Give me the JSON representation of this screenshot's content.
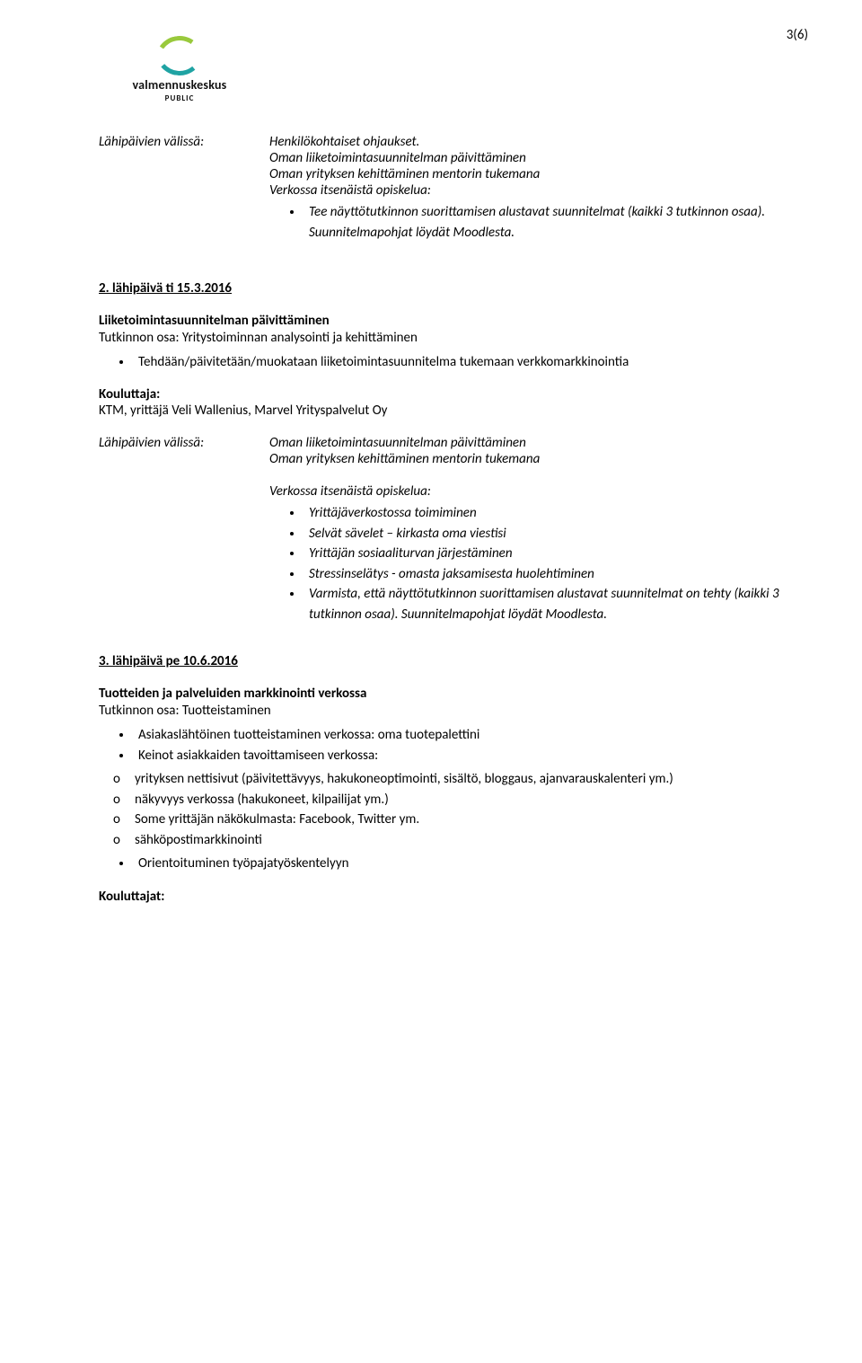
{
  "page_number_label": "3(6)",
  "logo": {
    "name": "valmennuskeskus",
    "sub": "PUBLIC",
    "arc_top_color": "#99c93c",
    "arc_bottom_color": "#1fa3a3"
  },
  "block1": {
    "label": "Lähipäivien välissä:",
    "lines": [
      "Henkilökohtaiset ohjaukset.",
      "Oman liiketoimintasuunnitelman päivittäminen",
      "Oman yrityksen kehittäminen mentorin tukemana",
      "Verkossa itsenäistä opiskelua:"
    ],
    "bullet": "Tee näyttötutkinnon suorittamisen alustavat suunnitelmat (kaikki 3 tutkinnon osaa). Suunnitelmapohjat löydät Moodlesta."
  },
  "section2": {
    "heading": "2. lähipäivä ti 15.3.2016",
    "title": "Liiketoimintasuunnitelman päivittäminen",
    "subtitle": "Tutkinnon osa: Yritystoiminnan analysointi ja kehittäminen",
    "bullets": [
      "Tehdään/päivitetään/muokataan liiketoimintasuunnitelma tukemaan verkkomarkkinointia"
    ],
    "kouluttaja_label": "Kouluttaja:",
    "kouluttaja": "KTM, yrittäjä Veli Wallenius, Marvel Yrityspalvelut Oy",
    "between_label": "Lähipäivien välissä:",
    "between_lines": [
      "Oman liiketoimintasuunnitelman päivittäminen",
      "Oman yrityksen kehittäminen mentorin tukemana"
    ],
    "verk_label": "Verkossa itsenäistä opiskelua:",
    "verk_bullets": [
      "Yrittäjäverkostossa toimiminen",
      "Selvät sävelet – kirkasta oma viestisi",
      "Yrittäjän sosiaaliturvan järjestäminen",
      "Stressinselätys - omasta jaksamisesta huolehtiminen",
      "Varmista, että näyttötutkinnon suorittamisen alustavat suunnitelmat on tehty (kaikki 3 tutkinnon osaa). Suunnitelmapohjat löydät Moodlesta."
    ]
  },
  "section3": {
    "heading": "3. lähipäivä pe 10.6.2016",
    "title": "Tuotteiden ja palveluiden markkinointi verkossa",
    "subtitle": "Tutkinnon osa: Tuotteistaminen",
    "bullets_top": [
      "Asiakaslähtöinen tuotteistaminen verkossa: oma tuotepalettini",
      "Keinot asiakkaiden tavoittamiseen verkossa:"
    ],
    "bullets_nested": [
      "yrityksen nettisivut (päivitettävyys, hakukoneoptimointi, sisältö, bloggaus, ajanvarauskalenteri ym.)",
      "näkyvyys verkossa (hakukoneet, kilpailijat ym.)",
      "Some yrittäjän näkökulmasta: Facebook, Twitter ym.",
      "sähköpostimarkkinointi"
    ],
    "bullets_after": [
      "Orientoituminen työpajatyöskentelyyn"
    ],
    "kouluttajat_label": "Kouluttajat:"
  }
}
